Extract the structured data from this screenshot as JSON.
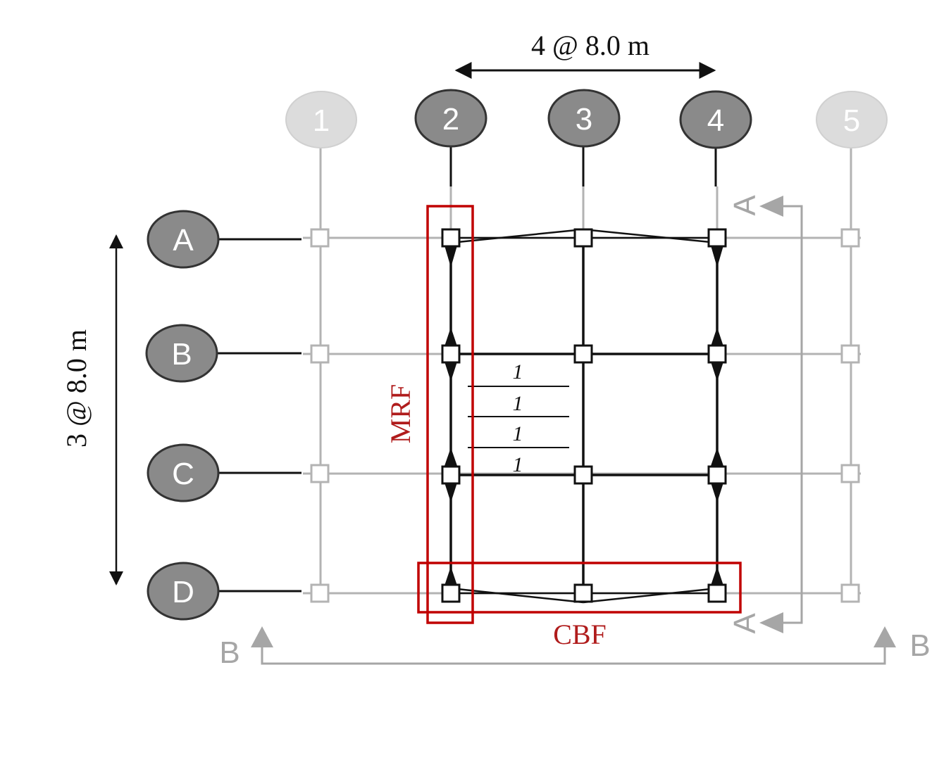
{
  "dimensions": {
    "horizontal": "4 @ 8.0 m",
    "vertical": "3 @ 8.0 m"
  },
  "grid": {
    "columns": [
      {
        "label": "1",
        "active": false
      },
      {
        "label": "2",
        "active": true
      },
      {
        "label": "3",
        "active": true
      },
      {
        "label": "4",
        "active": true
      },
      {
        "label": "5",
        "active": false
      }
    ],
    "rows": [
      {
        "label": "A"
      },
      {
        "label": "B"
      },
      {
        "label": "C"
      },
      {
        "label": "D"
      }
    ]
  },
  "frames": {
    "mrf": "MRF",
    "cbf": "CBF"
  },
  "sections": {
    "a_top": "A",
    "a_bottom": "A",
    "b_left": "B",
    "b_right": "B"
  },
  "joists": [
    "1",
    "1",
    "1",
    "1"
  ],
  "colors": {
    "active_bubble": "#8a8a8a",
    "inactive_bubble": "#dcdcdc",
    "frame_red": "#c00000",
    "grid_gray": "#b3b3b3",
    "member_black": "#111111"
  }
}
